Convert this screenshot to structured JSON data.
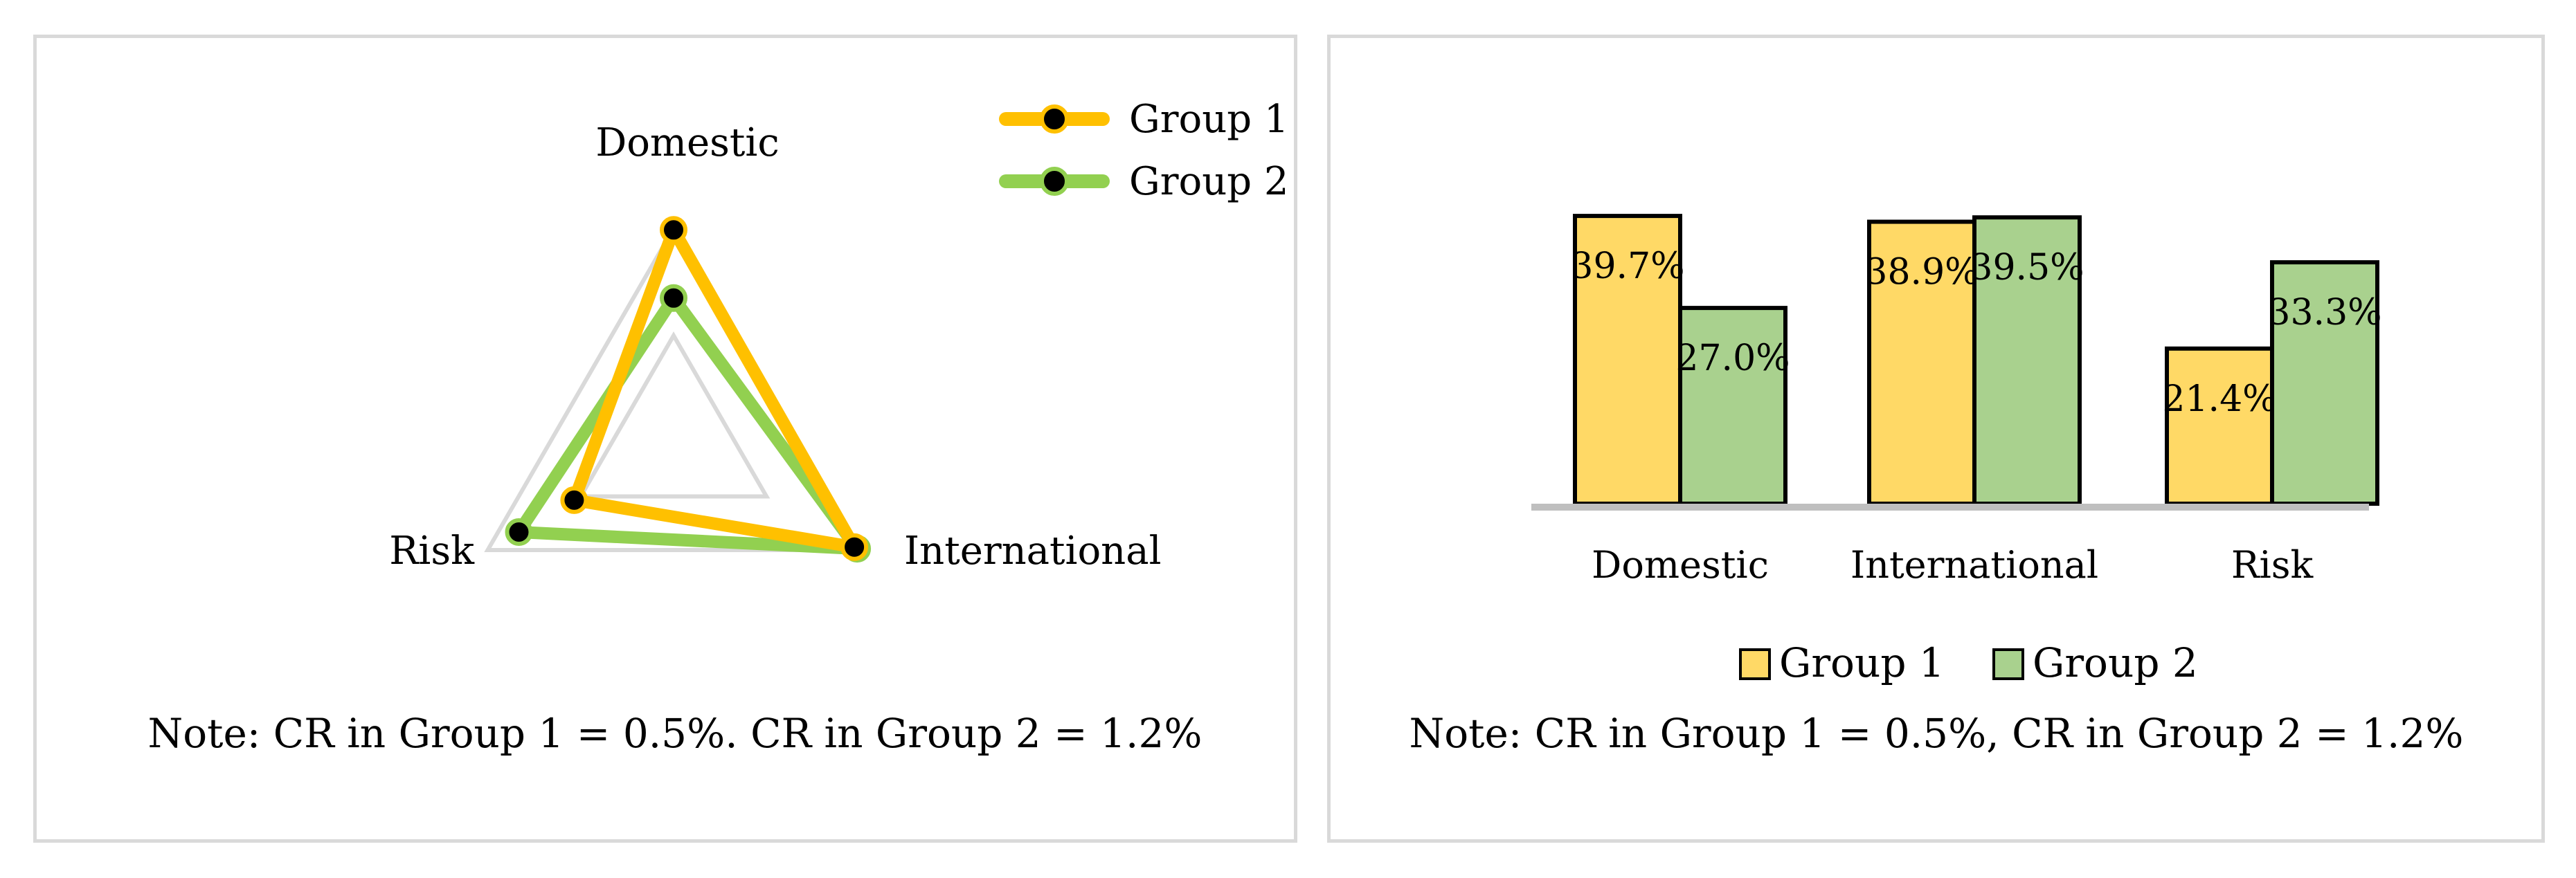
{
  "chart_data": [
    {
      "type": "radar",
      "axes": [
        "Domestic",
        "International",
        "Risk"
      ],
      "radial_range": [
        0,
        0.4
      ],
      "gridlines": [
        0.2,
        0.4
      ],
      "series": [
        {
          "name": "Group 1",
          "values": [
            0.397,
            0.389,
            0.214
          ]
        },
        {
          "name": "Group 2",
          "values": [
            0.27,
            0.395,
            0.333
          ]
        }
      ],
      "legend": "top-right",
      "note": "Note: CR in Group 1 = 0.5%. CR in Group 2 = 1.2%"
    },
    {
      "type": "bar",
      "categories": [
        "Domestic",
        "International",
        "Risk"
      ],
      "series": [
        {
          "name": "Group 1",
          "values": [
            39.7,
            38.9,
            21.4
          ],
          "labels": [
            "39.7%",
            "38.9%",
            "21.4%"
          ]
        },
        {
          "name": "Group 2",
          "values": [
            27.0,
            39.5,
            33.3
          ],
          "labels": [
            "27.0%",
            "39.5%",
            "33.3%"
          ]
        }
      ],
      "ylim": [
        0,
        42
      ],
      "legend": "bottom",
      "note": "Note: CR in Group 1 = 0.5%, CR in Group 2 = 1.2%"
    }
  ],
  "colors": {
    "group1_line": "#ffc000",
    "group2_line": "#92d050",
    "marker": "#000000",
    "grid": "#d9d9d9",
    "group1_bar": "#ffd966",
    "group2_bar": "#a9d18e",
    "bar_stroke": "#000000",
    "baseline": "#bfbfbf"
  }
}
